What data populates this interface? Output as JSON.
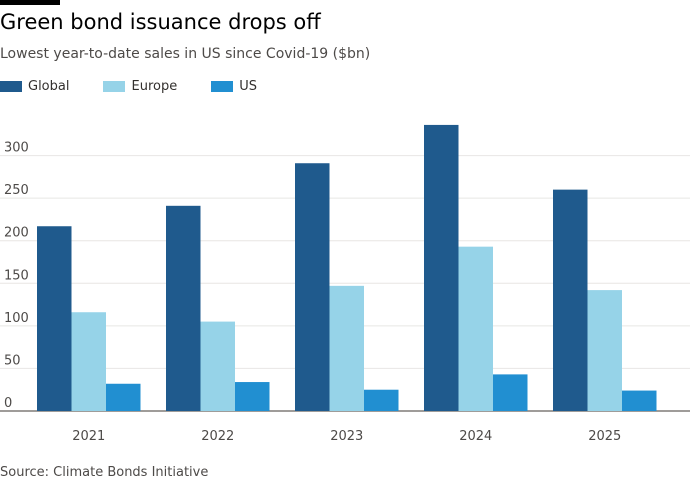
{
  "title": "Green bond issuance drops off",
  "subtitle": "Lowest year-to-date sales in US since Covid-19 ($bn)",
  "source": "Source: Climate Bonds Initiative",
  "legend": [
    {
      "label": "Global",
      "color": "#1f5a8d"
    },
    {
      "label": "Europe",
      "color": "#96d3e8"
    },
    {
      "label": "US",
      "color": "#218fd1"
    }
  ],
  "chart_data": {
    "type": "bar",
    "categories": [
      "2021",
      "2022",
      "2023",
      "2024",
      "2025"
    ],
    "series": [
      {
        "name": "Global",
        "values": [
          217,
          241,
          291,
          336,
          260
        ]
      },
      {
        "name": "Europe",
        "values": [
          116,
          105,
          147,
          193,
          142
        ]
      },
      {
        "name": "US",
        "values": [
          32,
          34,
          25,
          43,
          24
        ]
      }
    ],
    "title": "Green bond issuance drops off",
    "subtitle": "Lowest year-to-date sales in US since Covid-19 ($bn)",
    "xlabel": "",
    "ylabel": "",
    "ylim": [
      0,
      350
    ],
    "yticks": [
      0,
      50,
      100,
      150,
      200,
      250,
      300
    ],
    "grid": true,
    "legend_position": "top-left"
  }
}
